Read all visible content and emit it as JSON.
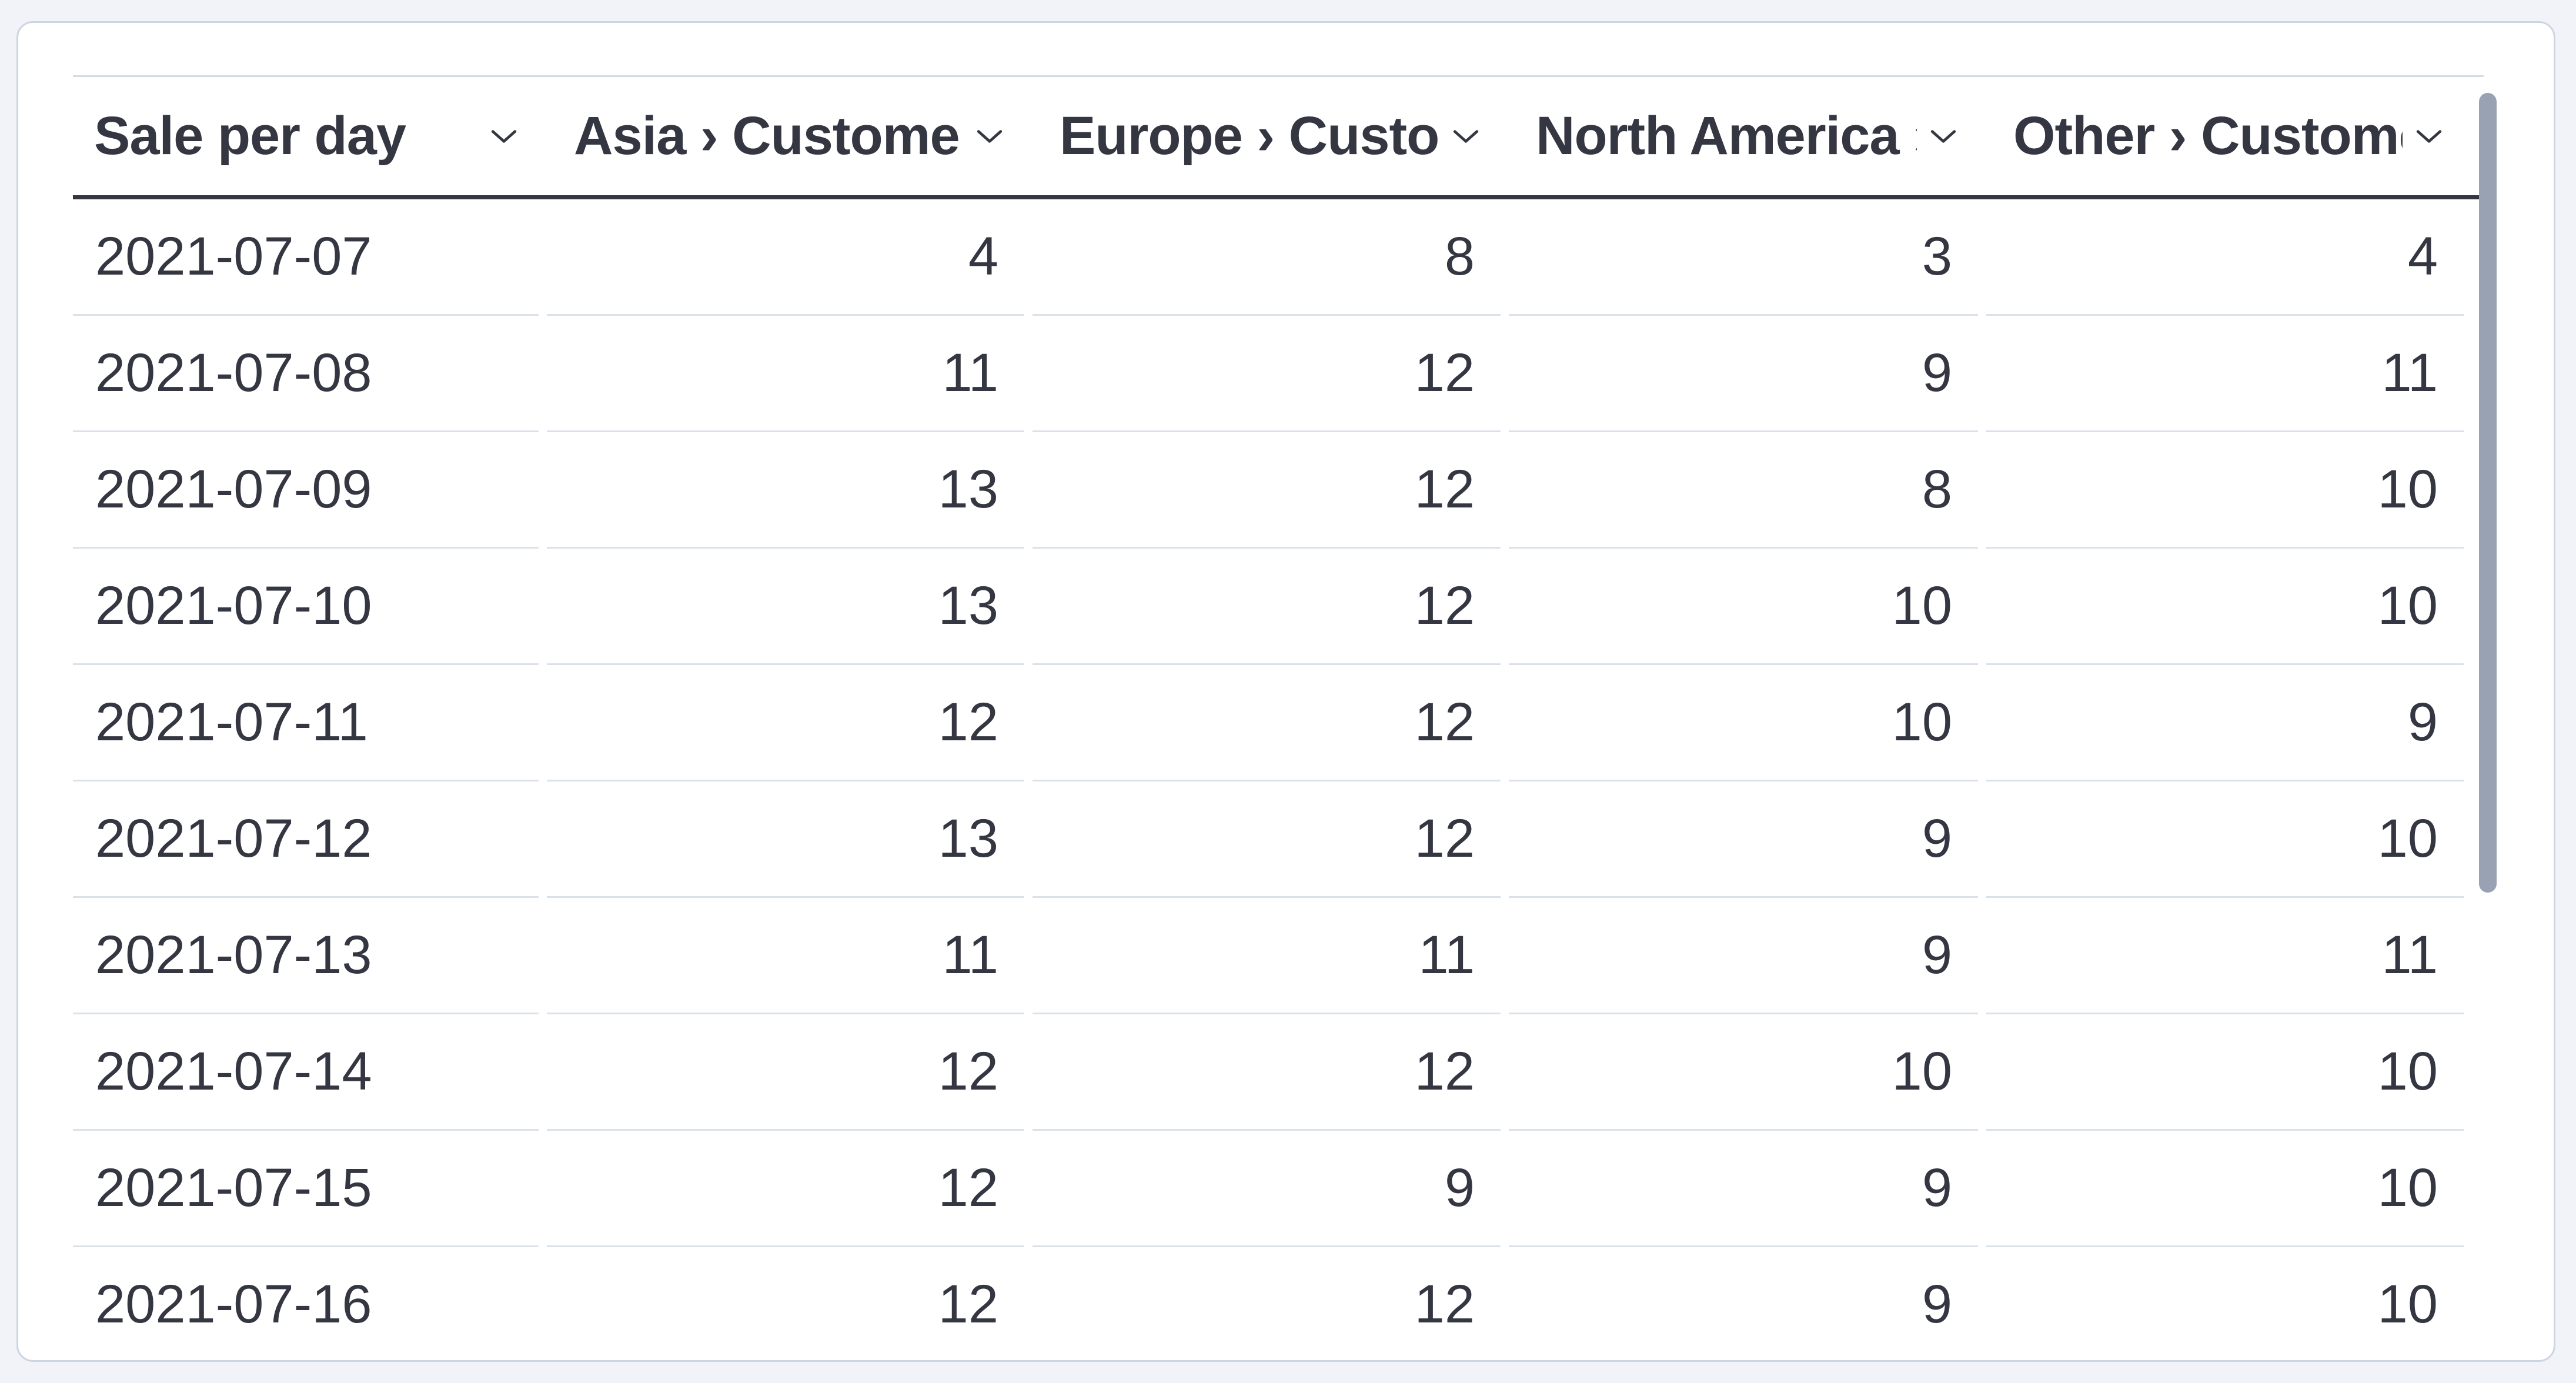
{
  "panel": {
    "type": "datatable",
    "colors": {
      "page_background": "#f1f3f8",
      "card_background": "#ffffff",
      "card_border": "#ccd5e2",
      "text": "#343741",
      "header_underline": "#343741",
      "row_border": "#dbe1eb",
      "table_top_border": "#d3dae6",
      "scrollbar_thumb": "#98a2b3"
    }
  },
  "table": {
    "columns": [
      {
        "slug": "sale-per-day",
        "label": "Sale per day",
        "align": "left",
        "sort_icon": "chevron-down"
      },
      {
        "slug": "asia-customers",
        "label": "Asia › Customers",
        "align": "right",
        "sort_icon": "chevron-down"
      },
      {
        "slug": "europe-customers",
        "label": "Europe › Customers",
        "align": "right",
        "sort_icon": "chevron-down"
      },
      {
        "slug": "north-america-customers",
        "label": "North America › Customers",
        "align": "right",
        "sort_icon": "chevron-down"
      },
      {
        "slug": "other-customers",
        "label": "Other › Customers",
        "align": "right",
        "sort_icon": "chevron-down"
      }
    ],
    "rows": [
      {
        "date": "2021-07-07",
        "values": [
          4,
          8,
          3,
          4
        ]
      },
      {
        "date": "2021-07-08",
        "values": [
          11,
          12,
          9,
          11
        ]
      },
      {
        "date": "2021-07-09",
        "values": [
          13,
          12,
          8,
          10
        ]
      },
      {
        "date": "2021-07-10",
        "values": [
          13,
          12,
          10,
          10
        ]
      },
      {
        "date": "2021-07-11",
        "values": [
          12,
          12,
          10,
          9
        ]
      },
      {
        "date": "2021-07-12",
        "values": [
          13,
          12,
          9,
          10
        ]
      },
      {
        "date": "2021-07-13",
        "values": [
          11,
          11,
          9,
          11
        ]
      },
      {
        "date": "2021-07-14",
        "values": [
          12,
          12,
          10,
          10
        ]
      },
      {
        "date": "2021-07-15",
        "values": [
          12,
          9,
          9,
          10
        ]
      },
      {
        "date": "2021-07-16",
        "values": [
          12,
          12,
          9,
          10
        ]
      }
    ]
  },
  "scrollbar": {
    "orientation": "vertical",
    "thumb_visible": true
  }
}
